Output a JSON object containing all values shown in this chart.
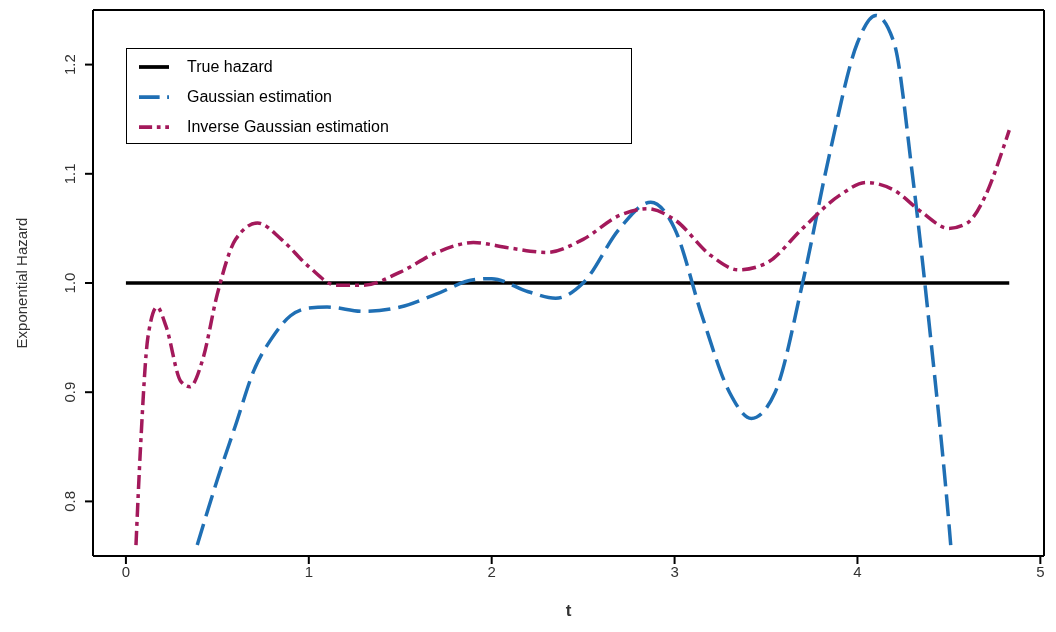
{
  "chart_data": {
    "type": "line",
    "xlabel": "t",
    "ylabel": "Exponential Hazard",
    "xlim": [
      -0.18,
      5.02
    ],
    "xticks": [
      0,
      1,
      2,
      3,
      4,
      5
    ],
    "ylim": [
      0.75,
      1.25
    ],
    "yticks": [
      0.8,
      0.9,
      {
        "value": 1.0,
        "label": "1.0"
      },
      1.1,
      1.2
    ],
    "legend": "top left",
    "marker": "none",
    "series": [
      {
        "name": "True hazard",
        "color": "#000000",
        "line_style": "solid",
        "x": [
          0,
          4.83
        ],
        "values": [
          1,
          1
        ]
      },
      {
        "name": "Gaussian estimation",
        "color": "#1f6fb4",
        "line_style": "dashed",
        "x": [
          0.39,
          0.5,
          0.6,
          0.7,
          0.8,
          0.9,
          1.0,
          1.1,
          1.3,
          1.5,
          1.7,
          1.9,
          2.0,
          2.2,
          2.35,
          2.5,
          2.7,
          2.87,
          3.0,
          3.15,
          3.3,
          3.42,
          3.55,
          3.7,
          3.85,
          4.0,
          4.1,
          4.2,
          4.3,
          4.4,
          4.5,
          4.51
        ],
        "values": [
          0.76,
          0.82,
          0.87,
          0.92,
          0.95,
          0.97,
          0.977,
          0.978,
          0.974,
          0.978,
          0.99,
          1.003,
          1.004,
          0.992,
          0.986,
          1.0,
          1.05,
          1.074,
          1.05,
          0.97,
          0.9,
          0.876,
          0.9,
          1.0,
          1.12,
          1.22,
          1.245,
          1.22,
          1.1,
          0.95,
          0.78,
          0.76
        ]
      },
      {
        "name": "Inverse Gaussian estimation",
        "color": "#a3195b",
        "line_style": "dashdot",
        "x": [
          0.055,
          0.08,
          0.12,
          0.17,
          0.22,
          0.3,
          0.35,
          0.42,
          0.5,
          0.6,
          0.72,
          0.85,
          1.0,
          1.15,
          1.3,
          1.5,
          1.7,
          1.9,
          2.1,
          2.3,
          2.5,
          2.7,
          2.85,
          3.0,
          3.2,
          3.35,
          3.5,
          3.7,
          3.9,
          4.05,
          4.2,
          4.35,
          4.5,
          4.6,
          4.7,
          4.8,
          4.83
        ],
        "values": [
          0.76,
          0.85,
          0.95,
          0.978,
          0.96,
          0.91,
          0.905,
          0.93,
          0.99,
          1.04,
          1.055,
          1.04,
          1.015,
          0.998,
          0.998,
          1.01,
          1.028,
          1.037,
          1.032,
          1.028,
          1.04,
          1.062,
          1.068,
          1.058,
          1.025,
          1.012,
          1.018,
          1.05,
          1.08,
          1.092,
          1.085,
          1.065,
          1.05,
          1.055,
          1.08,
          1.125,
          1.14
        ]
      }
    ]
  }
}
